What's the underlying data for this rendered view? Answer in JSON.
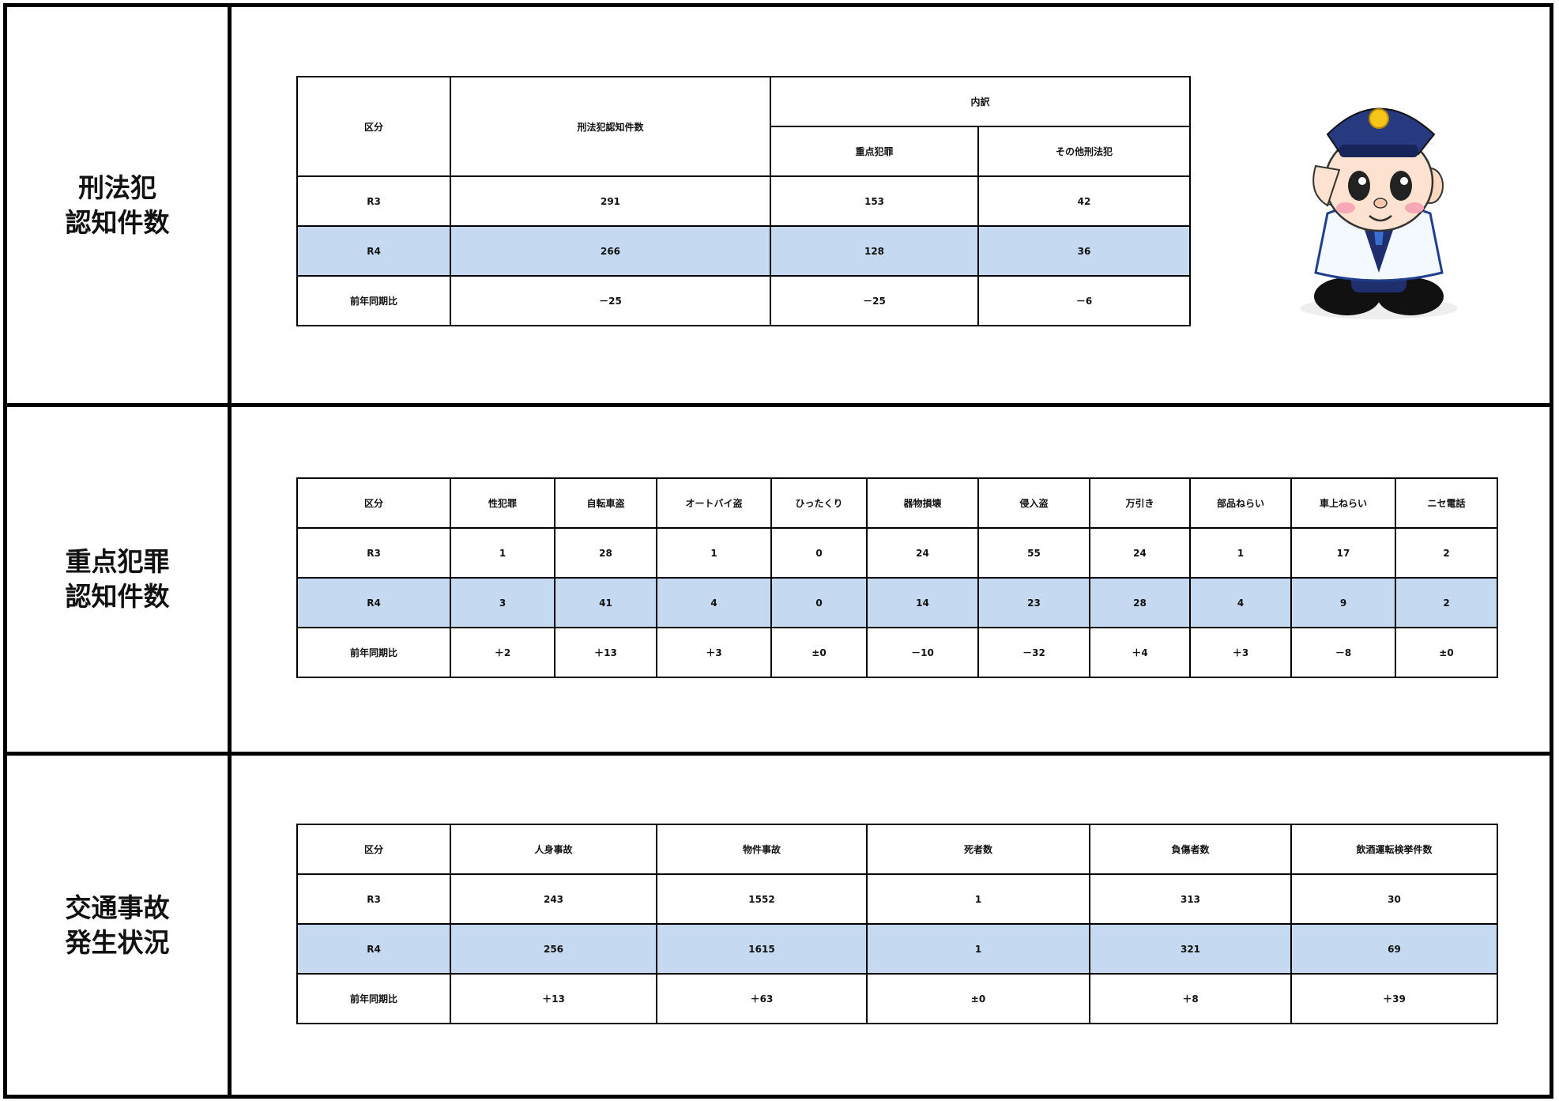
{
  "sections": [
    {
      "label": [
        "刑法犯",
        "認知件数"
      ],
      "table": {
        "header": [
          "区分",
          "刑法犯認知件数",
          "内訳",
          "重点犯罪",
          "その他刑法犯"
        ],
        "rows": [
          [
            "R3",
            "291",
            "153",
            "42"
          ],
          [
            "R4",
            "266",
            "128",
            "36"
          ],
          [
            "前年同期比",
            "－25",
            "－25",
            "－6"
          ]
        ]
      }
    },
    {
      "label": [
        "重点犯罪",
        "認知件数"
      ],
      "table": {
        "header": [
          "区分",
          "性犯罪",
          "自転車盗",
          "オートバイ盗",
          "ひったくり",
          "器物損壊",
          "侵入盗",
          "万引き",
          "部品ねらい",
          "車上ねらい",
          "ニセ電話"
        ],
        "rows": [
          [
            "R3",
            "1",
            "28",
            "1",
            "0",
            "24",
            "55",
            "24",
            "1",
            "17",
            "2"
          ],
          [
            "R4",
            "3",
            "41",
            "4",
            "0",
            "14",
            "23",
            "28",
            "4",
            "9",
            "2"
          ],
          [
            "前年同期比",
            "＋2",
            "＋13",
            "＋3",
            "±0",
            "－10",
            "－32",
            "＋4",
            "＋3",
            "－8",
            "±0"
          ]
        ]
      }
    },
    {
      "label": [
        "交通事故",
        "発生状況"
      ],
      "table": {
        "header": [
          "区分",
          "人身事故",
          "物件事故",
          "死者数",
          "負傷者数",
          "飲酒運転検挙件数"
        ],
        "rows": [
          [
            "R3",
            "243",
            "1552",
            "1",
            "313",
            "30"
          ],
          [
            "R4",
            "256",
            "1615",
            "1",
            "321",
            "69"
          ],
          [
            "前年同期比",
            "＋13",
            "＋63",
            "±0",
            "＋8",
            "＋39"
          ]
        ]
      }
    }
  ]
}
